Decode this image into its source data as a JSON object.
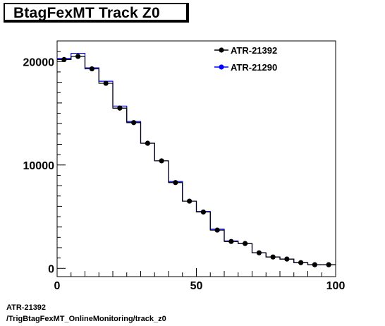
{
  "chart_data": {
    "type": "line",
    "title": "BtagFexMT Track Z0",
    "xlim": [
      0,
      100
    ],
    "ylim": [
      -800,
      22000
    ],
    "x_ticks": [
      0,
      50,
      100
    ],
    "y_ticks": [
      0,
      10000,
      20000
    ],
    "legend": [
      "ATR-21392",
      "ATR-21290"
    ],
    "legend_position": "top-right",
    "bin_edges": [
      0,
      5,
      10,
      15,
      20,
      25,
      30,
      35,
      40,
      45,
      50,
      55,
      60,
      65,
      70,
      75,
      80,
      85,
      90,
      95,
      100
    ],
    "x": [
      2.5,
      7.5,
      12.5,
      17.5,
      22.5,
      27.5,
      32.5,
      37.5,
      42.5,
      47.5,
      52.5,
      57.5,
      62.5,
      67.5,
      72.5,
      77.5,
      82.5,
      87.5,
      92.5,
      97.5
    ],
    "series": [
      {
        "name": "ATR-21392",
        "color": "#000000",
        "marker": "circle",
        "values": [
          20200,
          20500,
          19300,
          17900,
          15500,
          14100,
          12100,
          10400,
          8300,
          6500,
          5450,
          3700,
          2600,
          2400,
          1500,
          1100,
          900,
          550,
          350,
          350
        ]
      },
      {
        "name": "ATR-21290",
        "color": "#0000ff",
        "marker": "line",
        "values": [
          20300,
          20800,
          19400,
          18100,
          15700,
          14200,
          12100,
          10400,
          8400,
          6500,
          5500,
          3800,
          2650,
          2400,
          1500,
          1100,
          900,
          550,
          350,
          350
        ]
      }
    ]
  },
  "footer": {
    "line1": "ATR-21392",
    "line2": "/TrigBtagFexMT_OnlineMonitoring/track_z0"
  }
}
